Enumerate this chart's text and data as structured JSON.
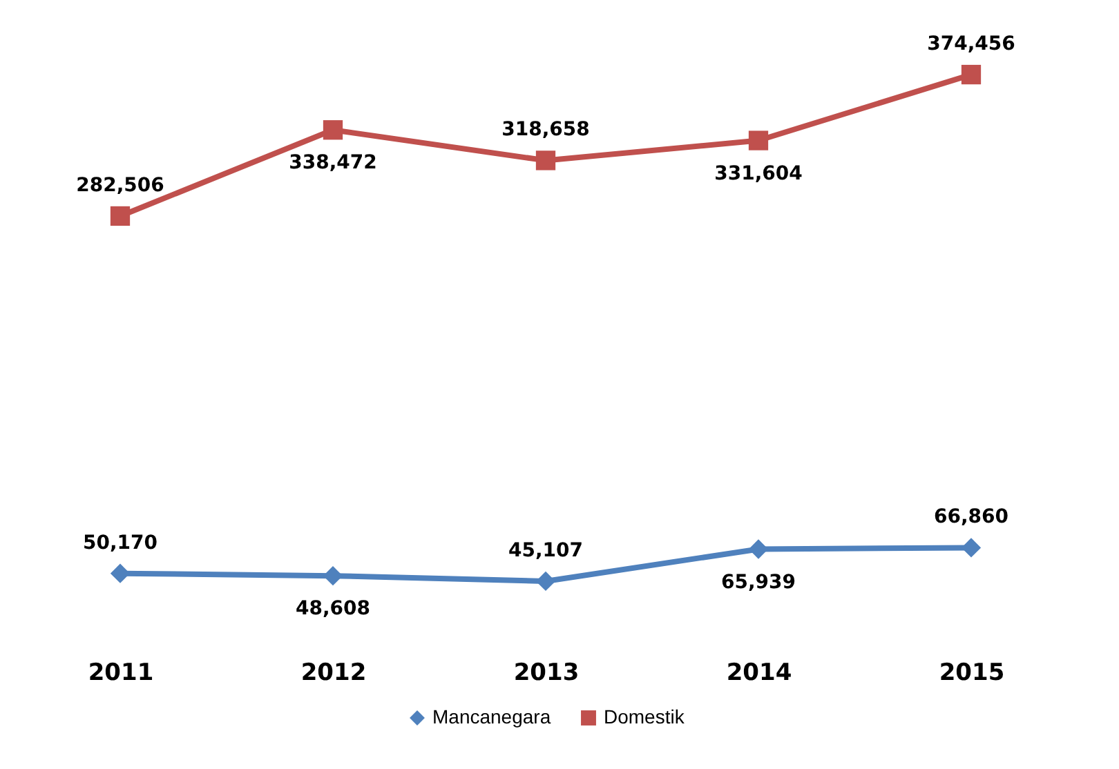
{
  "chart_data": {
    "type": "line",
    "categories": [
      "2011",
      "2012",
      "2013",
      "2014",
      "2015"
    ],
    "series": [
      {
        "name": "Mancanegara",
        "color": "#4f81bd",
        "marker": "diamond",
        "values": [
          50170,
          48608,
          45107,
          65939,
          66860
        ],
        "value_labels": [
          "50,170",
          "48,608",
          "45,107",
          "65,939",
          "66,860"
        ]
      },
      {
        "name": "Domestik",
        "color": "#c0504d",
        "marker": "square",
        "values": [
          282506,
          338472,
          318658,
          331604,
          374456
        ],
        "value_labels": [
          "282,506",
          "338,472",
          "318,658",
          "331,604",
          "374,456"
        ]
      }
    ],
    "legend": "bottom",
    "grid": false,
    "tick_labels": "x"
  }
}
